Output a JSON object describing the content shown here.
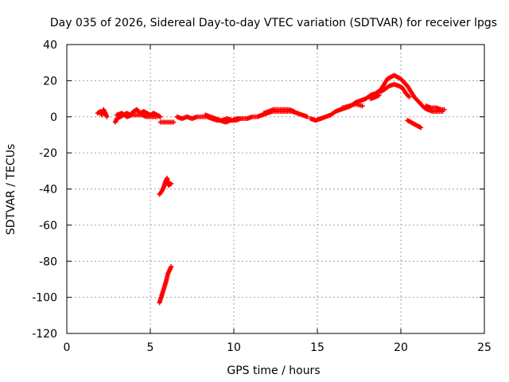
{
  "chart_data": {
    "type": "scatter",
    "title": "Day 035 of 2026, Sidereal Day-to-day VTEC variation (SDTVAR) for receiver lpgs",
    "xlabel": "GPS time / hours",
    "ylabel": "SDTVAR / TECUs",
    "xlim": [
      0,
      25
    ],
    "ylim": [
      -120,
      40
    ],
    "xticks": [
      0,
      5,
      10,
      15,
      20,
      25
    ],
    "yticks": [
      40,
      20,
      0,
      -20,
      -40,
      -60,
      -80,
      -100,
      -120
    ],
    "grid": true,
    "series": [
      {
        "name": "SDTVAR",
        "color": "#ff0000",
        "marker": "+",
        "segments": [
          [
            [
              1.85,
              2
            ],
            [
              2.0,
              3
            ],
            [
              2.1,
              1
            ],
            [
              2.2,
              4
            ],
            [
              2.3,
              2
            ],
            [
              2.4,
              0
            ]
          ],
          [
            [
              2.9,
              -3
            ],
            [
              3.0,
              -1
            ],
            [
              3.2,
              0
            ],
            [
              3.4,
              1
            ],
            [
              3.6,
              2
            ],
            [
              3.8,
              1
            ],
            [
              4.0,
              3
            ],
            [
              4.2,
              4
            ],
            [
              4.4,
              2
            ],
            [
              4.6,
              3
            ],
            [
              4.8,
              2
            ],
            [
              5.0,
              1
            ],
            [
              5.2,
              2
            ],
            [
              5.4,
              1
            ],
            [
              5.6,
              0
            ]
          ],
          [
            [
              3.0,
              1
            ],
            [
              3.3,
              2
            ],
            [
              3.6,
              0
            ],
            [
              3.9,
              1
            ],
            [
              4.2,
              1
            ],
            [
              4.5,
              1
            ],
            [
              4.8,
              0
            ],
            [
              5.1,
              0
            ],
            [
              5.4,
              0
            ]
          ],
          [
            [
              5.6,
              -3
            ],
            [
              5.8,
              -3
            ],
            [
              6.0,
              -3
            ],
            [
              6.2,
              -3
            ],
            [
              6.4,
              -3
            ]
          ],
          [
            [
              6.6,
              0
            ],
            [
              6.9,
              -1
            ],
            [
              7.2,
              0
            ],
            [
              7.5,
              -1
            ],
            [
              7.8,
              0
            ],
            [
              8.1,
              0
            ],
            [
              8.4,
              0
            ],
            [
              8.7,
              -1
            ],
            [
              9.0,
              -2
            ],
            [
              9.3,
              -2
            ],
            [
              9.6,
              -1
            ],
            [
              9.9,
              -2
            ],
            [
              10.2,
              -1
            ],
            [
              10.5,
              -1
            ],
            [
              10.8,
              -1
            ],
            [
              11.1,
              0
            ],
            [
              11.4,
              0
            ],
            [
              11.7,
              1
            ],
            [
              12.0,
              2
            ],
            [
              12.3,
              3
            ],
            [
              12.6,
              3
            ],
            [
              12.9,
              3
            ],
            [
              13.2,
              3
            ],
            [
              13.5,
              3
            ],
            [
              13.8,
              2
            ],
            [
              14.1,
              1
            ],
            [
              14.4,
              0
            ]
          ],
          [
            [
              8.3,
              1
            ],
            [
              8.6,
              0
            ],
            [
              8.9,
              -1
            ],
            [
              9.2,
              -2
            ],
            [
              9.5,
              -3
            ],
            [
              9.8,
              -2
            ],
            [
              10.1,
              -2
            ],
            [
              10.4,
              -1
            ]
          ],
          [
            [
              11.8,
              2
            ],
            [
              12.1,
              3
            ],
            [
              12.4,
              4
            ],
            [
              12.7,
              4
            ],
            [
              13.0,
              4
            ],
            [
              13.3,
              4
            ],
            [
              13.6,
              3
            ]
          ],
          [
            [
              14.6,
              -1
            ],
            [
              14.9,
              -2
            ],
            [
              15.2,
              -1
            ],
            [
              15.5,
              0
            ],
            [
              15.8,
              1
            ],
            [
              16.1,
              3
            ],
            [
              16.4,
              4
            ],
            [
              16.7,
              5
            ],
            [
              17.0,
              6
            ],
            [
              17.3,
              8
            ],
            [
              17.6,
              9
            ],
            [
              17.9,
              10
            ],
            [
              18.2,
              12
            ],
            [
              18.5,
              13
            ],
            [
              18.8,
              15
            ],
            [
              19.0,
              18
            ],
            [
              19.2,
              21
            ],
            [
              19.4,
              22
            ],
            [
              19.6,
              23
            ],
            [
              19.8,
              22
            ],
            [
              20.0,
              21
            ],
            [
              20.2,
              19
            ],
            [
              20.4,
              17
            ],
            [
              20.6,
              14
            ],
            [
              20.8,
              11
            ],
            [
              21.0,
              9
            ],
            [
              21.2,
              7
            ],
            [
              21.4,
              5
            ],
            [
              21.6,
              4
            ],
            [
              21.9,
              3
            ],
            [
              22.2,
              3
            ],
            [
              22.5,
              3
            ]
          ],
          [
            [
              16.5,
              5
            ],
            [
              16.9,
              6
            ],
            [
              17.3,
              7
            ],
            [
              17.7,
              6
            ]
          ],
          [
            [
              18.2,
              10
            ],
            [
              18.5,
              11
            ],
            [
              18.7,
              12
            ]
          ],
          [
            [
              18.8,
              14
            ],
            [
              19.0,
              15
            ],
            [
              19.3,
              17
            ],
            [
              19.6,
              18
            ],
            [
              19.9,
              17
            ],
            [
              20.1,
              16
            ],
            [
              20.3,
              13
            ],
            [
              20.5,
              11
            ]
          ],
          [
            [
              21.5,
              6
            ],
            [
              21.8,
              5
            ],
            [
              22.1,
              5
            ],
            [
              22.4,
              4
            ],
            [
              22.6,
              4
            ]
          ],
          [
            [
              20.4,
              -2
            ],
            [
              20.6,
              -3
            ],
            [
              20.8,
              -4
            ],
            [
              21.0,
              -5
            ],
            [
              21.2,
              -6
            ]
          ],
          [
            [
              5.55,
              -43
            ],
            [
              5.7,
              -41
            ],
            [
              5.8,
              -39
            ],
            [
              5.9,
              -36
            ],
            [
              6.0,
              -34
            ],
            [
              6.1,
              -38
            ],
            [
              6.25,
              -37
            ]
          ],
          [
            [
              5.55,
              -103
            ],
            [
              5.65,
              -100
            ],
            [
              5.75,
              -97
            ],
            [
              5.85,
              -94
            ],
            [
              5.95,
              -91
            ],
            [
              6.05,
              -87
            ],
            [
              6.15,
              -85
            ],
            [
              6.25,
              -83
            ]
          ]
        ]
      }
    ]
  }
}
